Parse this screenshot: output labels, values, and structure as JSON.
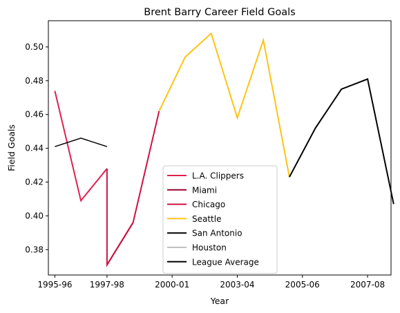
{
  "chart_data": {
    "type": "line",
    "title": "Brent Barry Career Field Goals",
    "xlabel": "Year",
    "ylabel": "Field Goals",
    "x_tick_labels": [
      "1995-96",
      "1997-98",
      "2000-01",
      "2003-04",
      "2005-06",
      "2007-08"
    ],
    "y_tick_labels": [
      "0.38",
      "0.40",
      "0.42",
      "0.44",
      "0.46",
      "0.48",
      "0.50"
    ],
    "xlim": [
      1995.75,
      2008.9
    ],
    "ylim": [
      0.365,
      0.5155
    ],
    "x_ticks": [
      1996,
      1998,
      2000.5,
      2003,
      2005.5,
      2008
    ],
    "y_ticks": [
      0.38,
      0.4,
      0.42,
      0.44,
      0.46,
      0.48,
      0.5
    ],
    "grid": false,
    "legend_position": "lower center",
    "series": [
      {
        "name": "L.A. Clippers",
        "color": "#e0214f",
        "x": [
          1996,
          1997,
          1998
        ],
        "y": [
          0.474,
          0.409,
          0.428
        ]
      },
      {
        "name": "Miami",
        "color": "#98002e",
        "x": [
          1998,
          1999
        ],
        "y": [
          0.371,
          0.396
        ]
      },
      {
        "name": "Chicago",
        "color": "#ce1141",
        "x": [
          1998,
          1998,
          1999,
          2000
        ],
        "y": [
          0.428,
          0.371,
          0.396,
          0.462
        ]
      },
      {
        "name": "Seattle",
        "color": "#fdc314",
        "x": [
          2000,
          2001,
          2002,
          2003,
          2004,
          2005
        ],
        "y": [
          0.462,
          0.494,
          0.508,
          0.458,
          0.504,
          0.423
        ]
      },
      {
        "name": "San Antonio",
        "color": "#000000",
        "x": [
          2005,
          2006,
          2007,
          2008,
          2009
        ],
        "y": [
          0.423,
          0.452,
          0.475,
          0.481,
          0.407
        ]
      },
      {
        "name": "Houston",
        "color": "#c0c0c0",
        "x": [],
        "y": []
      },
      {
        "name": "League Average",
        "color": "#000000",
        "width": 1.5,
        "x": [
          1996,
          1997,
          1998
        ],
        "y": [
          0.441,
          0.446,
          0.441
        ]
      }
    ]
  }
}
